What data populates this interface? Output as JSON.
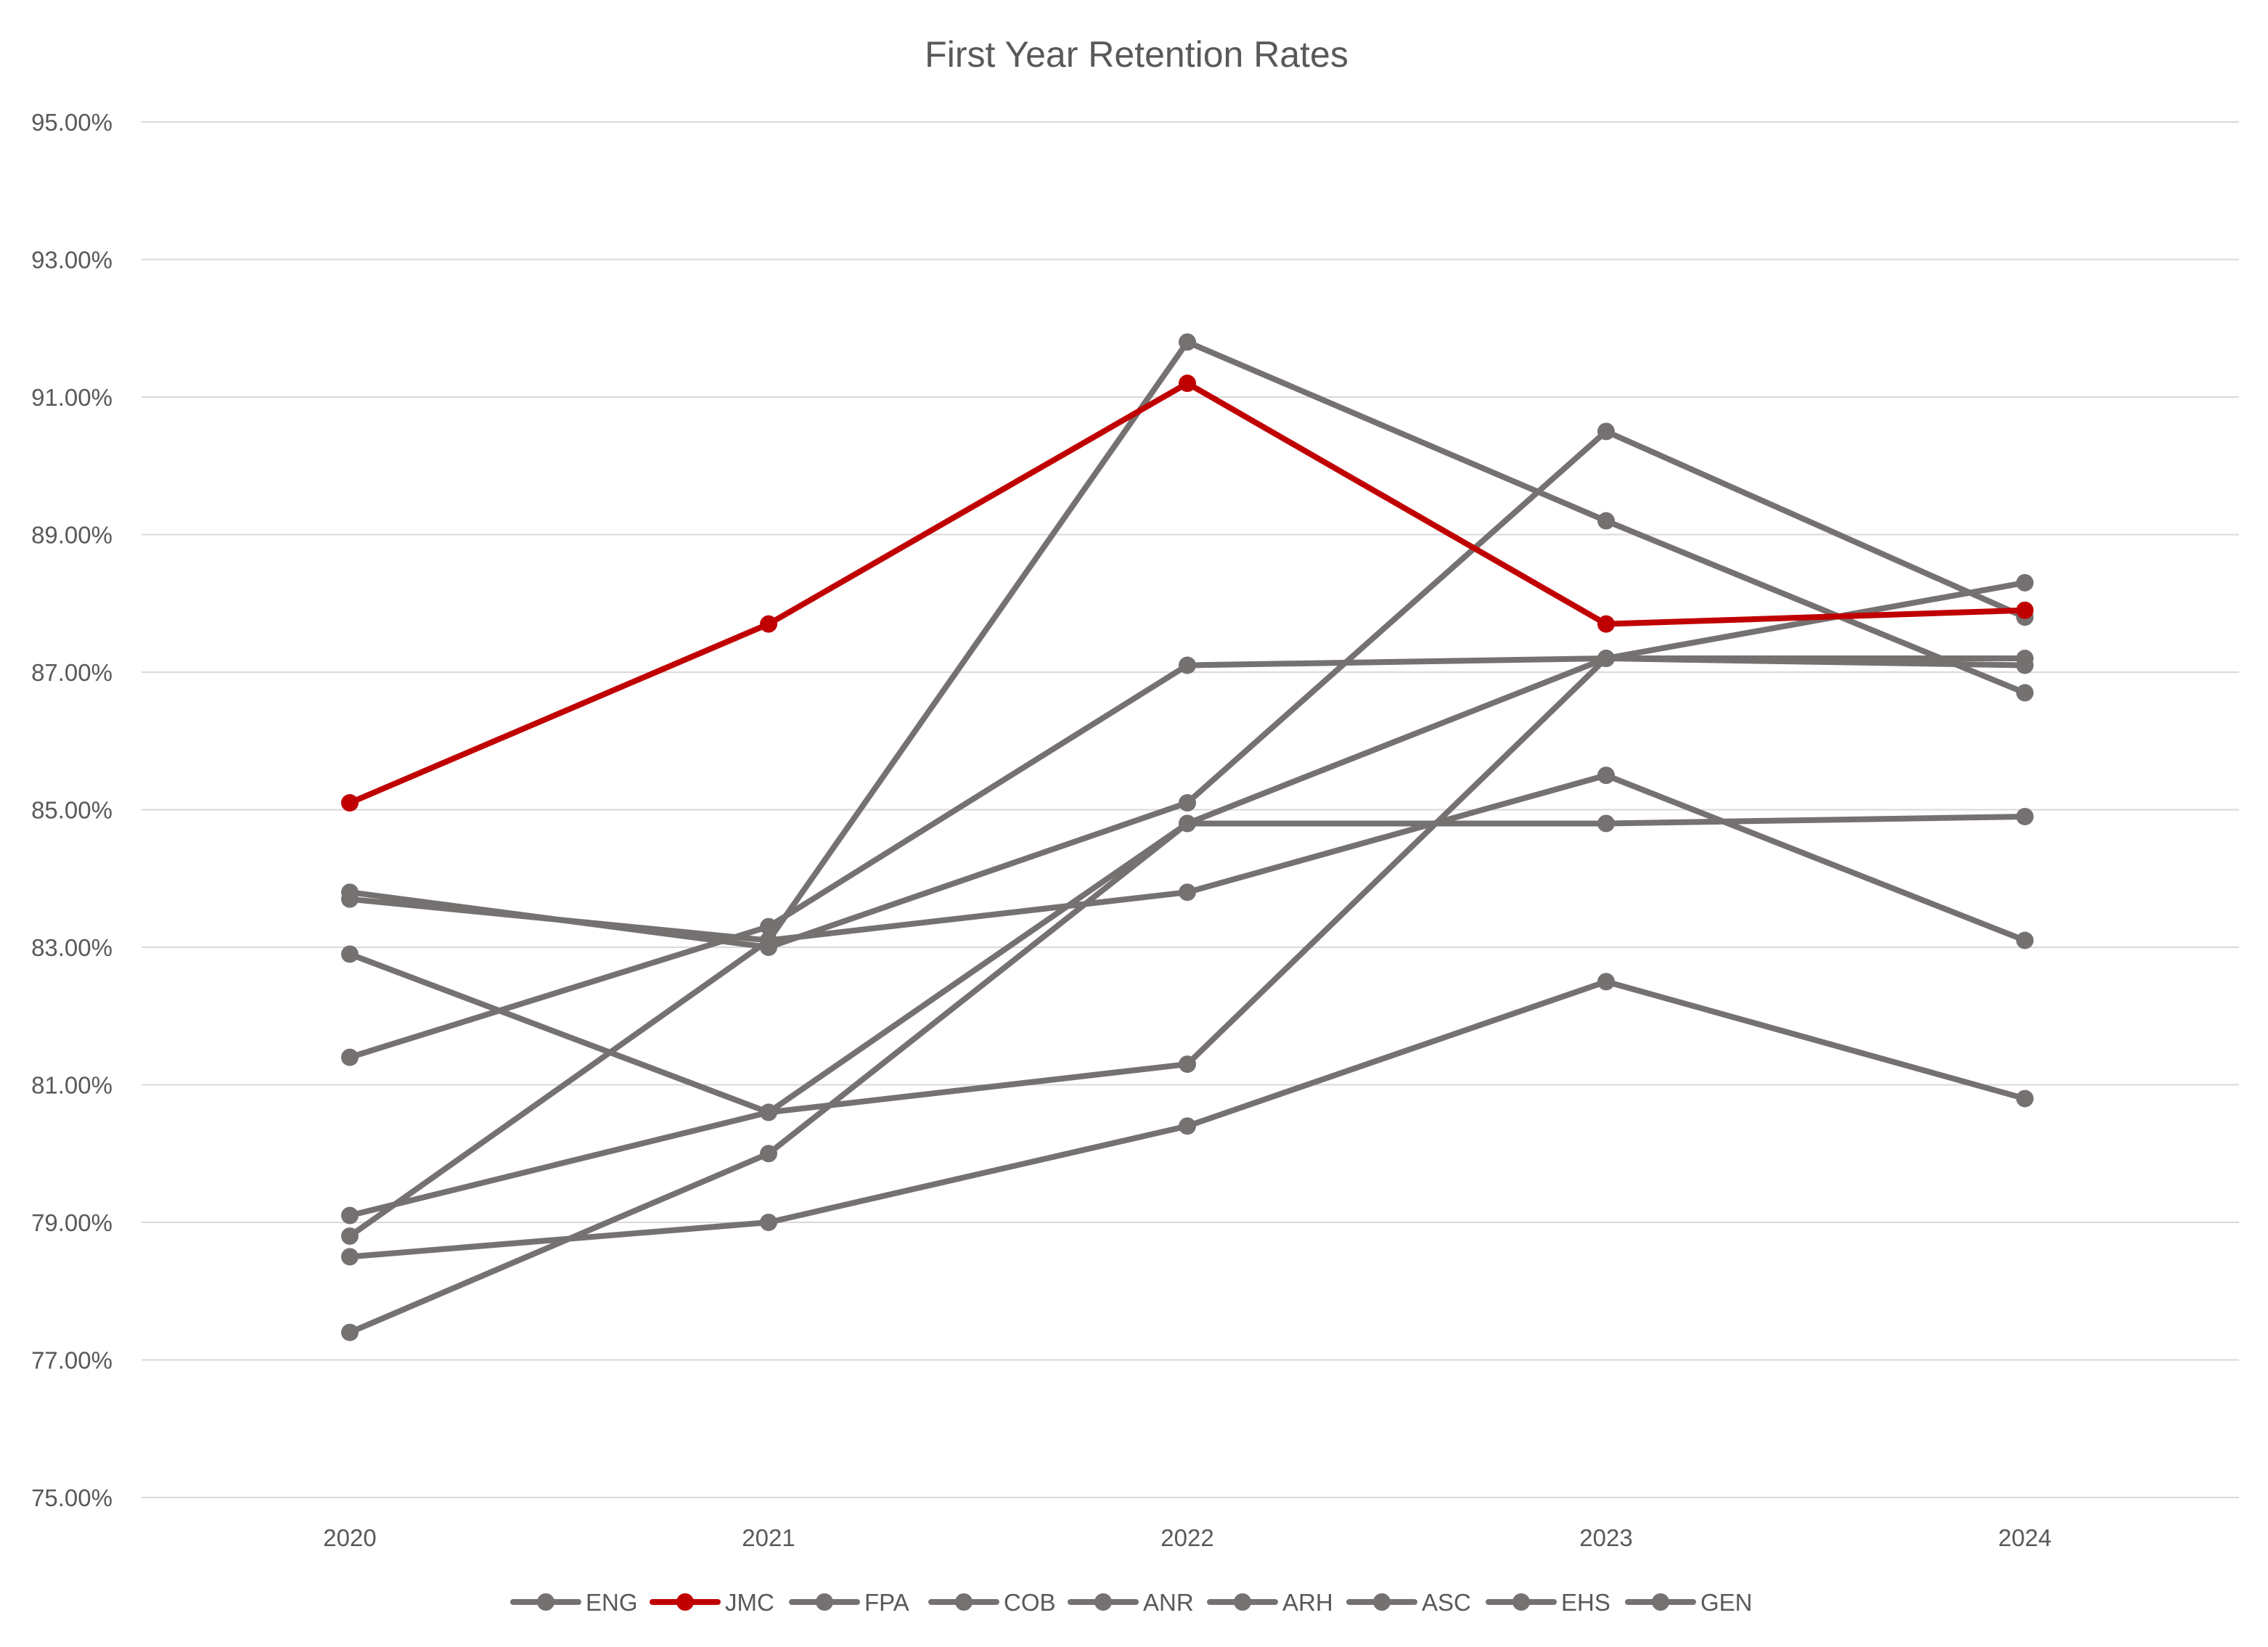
{
  "chart_data": {
    "type": "line",
    "title": "First Year Retention Rates",
    "xlabel": "",
    "ylabel": "",
    "categories": [
      "2020",
      "2021",
      "2022",
      "2023",
      "2024"
    ],
    "y_tick_labels": [
      "75.00%",
      "77.00%",
      "79.00%",
      "81.00%",
      "83.00%",
      "85.00%",
      "87.00%",
      "89.00%",
      "91.00%",
      "93.00%",
      "95.00%"
    ],
    "ylim": [
      75,
      95
    ],
    "y_unit": "%",
    "grid": true,
    "legend_position": "bottom",
    "colors": {
      "highlight": "#C00000",
      "default": "#767171",
      "grid": "#D9D9D9",
      "text": "#595959"
    },
    "series": [
      {
        "name": "ENG",
        "color": "#767171",
        "values": [
          83.8,
          83.0,
          85.1,
          90.5,
          87.8
        ]
      },
      {
        "name": "JMC",
        "color": "#C00000",
        "values": [
          85.1,
          87.7,
          91.2,
          87.7,
          87.9
        ]
      },
      {
        "name": "FPA",
        "color": "#767171",
        "values": [
          78.8,
          83.1,
          91.8,
          89.2,
          86.7
        ]
      },
      {
        "name": "COB",
        "color": "#767171",
        "values": [
          83.7,
          83.1,
          83.8,
          85.5,
          83.1
        ]
      },
      {
        "name": "ANR",
        "color": "#767171",
        "values": [
          82.9,
          80.6,
          81.3,
          87.2,
          87.1
        ]
      },
      {
        "name": "ARH",
        "color": "#767171",
        "values": [
          79.1,
          80.6,
          84.8,
          87.2,
          87.2
        ]
      },
      {
        "name": "ASC",
        "color": "#767171",
        "values": [
          78.5,
          79.0,
          80.4,
          82.5,
          80.8
        ]
      },
      {
        "name": "EHS",
        "color": "#767171",
        "values": [
          81.4,
          83.3,
          87.1,
          87.2,
          88.3
        ]
      },
      {
        "name": "GEN",
        "color": "#767171",
        "values": [
          77.4,
          80.0,
          84.8,
          84.8,
          84.9
        ]
      }
    ]
  }
}
